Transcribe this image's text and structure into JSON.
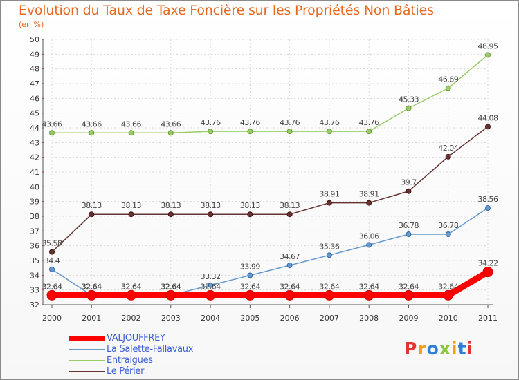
{
  "header": {
    "title": "Evolution du Taux de Taxe Foncière sur les Propriétés Non Bâties",
    "unit": "(en %)"
  },
  "logo": {
    "text": "Proxiti",
    "colors": [
      "#e3342f",
      "#f39c12",
      "#2d7fd3",
      "#8cc63f",
      "#f39c12",
      "#2d7fd3",
      "#e3342f"
    ]
  },
  "chart_data": {
    "type": "line",
    "title": "Evolution du Taux de Taxe Foncière sur les Propriétés Non Bâties",
    "ylabel": "(en %)",
    "xlabel": "",
    "x": [
      "2000",
      "2001",
      "2002",
      "2003",
      "2004",
      "2005",
      "2006",
      "2007",
      "2008",
      "2009",
      "2010",
      "2011"
    ],
    "ylim": [
      32,
      50
    ],
    "yticks": [
      "32",
      "33",
      "34",
      "35",
      "36",
      "37",
      "38",
      "39",
      "40",
      "41",
      "42",
      "43",
      "44",
      "45",
      "46",
      "47",
      "48",
      "49",
      "50"
    ],
    "grid": true,
    "legend_position": "bottom-left",
    "series": [
      {
        "name": "VALJOUFFREY",
        "color": "#ff0000",
        "values": [
          32.64,
          32.64,
          32.64,
          32.64,
          32.64,
          32.64,
          32.64,
          32.64,
          32.64,
          32.64,
          32.64,
          34.22
        ],
        "labels": [
          "32.64",
          "32.64",
          "32.64",
          "32.64",
          "32.64",
          "32.64",
          "32.64",
          "32.64",
          "32.64",
          "32.64",
          "32.64",
          "34.22"
        ]
      },
      {
        "name": "La Salette-Fallavaux",
        "color": "#6699cc",
        "values": [
          34.4,
          32.64,
          32.64,
          32.64,
          33.32,
          33.99,
          34.67,
          35.36,
          36.06,
          36.78,
          36.78,
          38.56
        ],
        "labels": [
          "34.4",
          "32.64",
          "32.64",
          "32.64",
          "33.32",
          "33.99",
          "34.67",
          "35.36",
          "36.06",
          "36.78",
          "36.78",
          "38.56"
        ]
      },
      {
        "name": "Entraigues",
        "color": "#99cc66",
        "values": [
          43.66,
          43.66,
          43.66,
          43.66,
          43.76,
          43.76,
          43.76,
          43.76,
          43.76,
          45.33,
          46.69,
          48.95
        ],
        "labels": [
          "43.66",
          "43.66",
          "43.66",
          "43.66",
          "43.76",
          "43.76",
          "43.76",
          "43.76",
          "43.76",
          "45.33",
          "46.69",
          "48.95"
        ]
      },
      {
        "name": "Le Périer",
        "color": "#663333",
        "values": [
          35.58,
          38.13,
          38.13,
          38.13,
          38.13,
          38.13,
          38.13,
          38.91,
          38.91,
          39.7,
          42.04,
          44.08
        ],
        "labels": [
          "35.58",
          "38.13",
          "38.13",
          "38.13",
          "38.13",
          "38.13",
          "38.13",
          "38.91",
          "38.91",
          "39.7",
          "42.04",
          "44.08"
        ]
      }
    ]
  }
}
